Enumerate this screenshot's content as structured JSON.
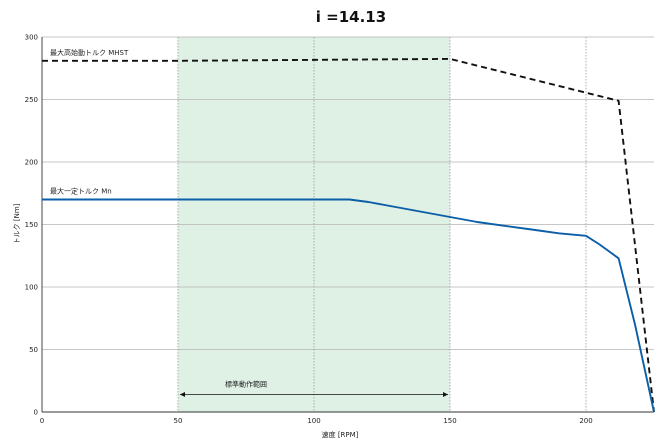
{
  "chart_data": {
    "type": "line",
    "title": "i =14.13",
    "xlabel": "速度 [RPM]",
    "ylabel": "トルク [Nm]",
    "xlim": [
      0,
      225
    ],
    "ylim": [
      0,
      300
    ],
    "xticks": [
      0,
      50,
      100,
      150,
      200
    ],
    "yticks": [
      0,
      50,
      100,
      150,
      200,
      250,
      300
    ],
    "grid": "horizontal",
    "vlines_dotted": [
      50,
      100,
      150,
      200
    ],
    "band": {
      "x_start": 50,
      "x_end": 150,
      "color": "#dff0e5",
      "label": "標準動作範囲"
    },
    "series": [
      {
        "name": "最大高始動トルク MHST",
        "color": "#111111",
        "style": "dashed",
        "x": [
          0,
          50,
          150,
          212,
          225
        ],
        "y": [
          281,
          281,
          282.5,
          249,
          0
        ]
      },
      {
        "name": "最大一定トルク Mn",
        "color": "#0b5ea8",
        "style": "solid",
        "x": [
          0,
          113,
          120,
          130,
          140,
          150,
          160,
          170,
          180,
          190,
          200,
          205,
          212,
          218,
          225
        ],
        "y": [
          170,
          170,
          168,
          164,
          160,
          156,
          152,
          149,
          146,
          143,
          141,
          134,
          123,
          70,
          0
        ]
      }
    ]
  }
}
